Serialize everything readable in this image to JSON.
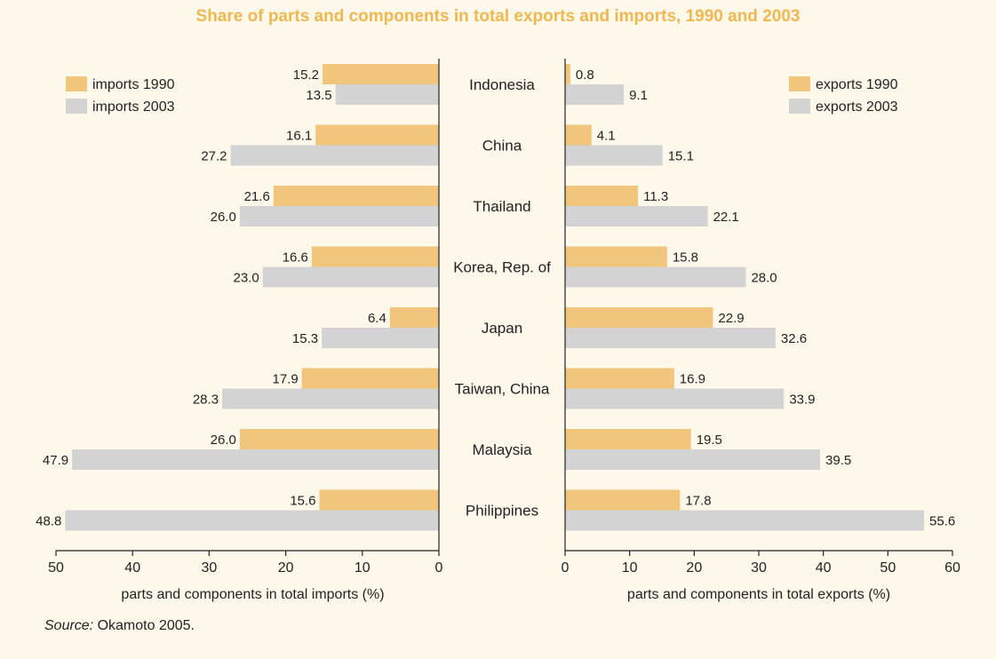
{
  "title": "Share of parts and components in total exports and imports, 1990 and 2003",
  "source": {
    "label": "Source:",
    "text": " Okamoto 2005."
  },
  "colors": {
    "y1990": "#f2c57c",
    "y2003": "#d3d3d3",
    "axis": "#222222",
    "title": "#efb750",
    "background": "#fdf8ea"
  },
  "chart_data": [
    {
      "type": "bar",
      "orientation": "horizontal",
      "direction": "reversed",
      "categories": [
        "Indonesia",
        "China",
        "Thailand",
        "Korea, Rep. of",
        "Japan",
        "Taiwan, China",
        "Malaysia",
        "Philippines"
      ],
      "series": [
        {
          "name": "imports 1990",
          "color": "#f2c57c",
          "values": [
            15.2,
            16.1,
            21.6,
            16.6,
            6.4,
            17.9,
            26.0,
            15.6
          ]
        },
        {
          "name": "imports 2003",
          "color": "#d3d3d3",
          "values": [
            13.5,
            27.2,
            26.0,
            23.0,
            15.3,
            28.3,
            47.9,
            48.8
          ]
        }
      ],
      "value_labels": {
        "imports 1990": [
          "15.2",
          "16.1",
          "21.6",
          "16.6",
          "6.4",
          "17.9",
          "26.0",
          "15.6"
        ],
        "imports 2003": [
          "13.5",
          "27.2",
          "26.0",
          "23.0",
          "15.3",
          "28.3",
          "47.9",
          "48.8"
        ]
      },
      "xlabel": "parts and components in total imports (%)",
      "xlim": [
        0,
        50
      ],
      "xticks": [
        50,
        40,
        30,
        20,
        10,
        0
      ],
      "legend": "top-left"
    },
    {
      "type": "bar",
      "orientation": "horizontal",
      "direction": "normal",
      "categories": [
        "Indonesia",
        "China",
        "Thailand",
        "Korea, Rep. of",
        "Japan",
        "Taiwan, China",
        "Malaysia",
        "Philippines"
      ],
      "series": [
        {
          "name": "exports 1990",
          "color": "#f2c57c",
          "values": [
            0.8,
            4.1,
            11.3,
            15.8,
            22.9,
            16.9,
            19.5,
            17.8
          ]
        },
        {
          "name": "exports 2003",
          "color": "#d3d3d3",
          "values": [
            9.1,
            15.1,
            22.1,
            28.0,
            32.6,
            33.9,
            39.5,
            55.6
          ]
        }
      ],
      "value_labels": {
        "exports 1990": [
          "0.8",
          "4.1",
          "11.3",
          "15.8",
          "22.9",
          "16.9",
          "19.5",
          "17.8"
        ],
        "exports 2003": [
          "9.1",
          "15.1",
          "22.1",
          "28.0",
          "32.6",
          "33.9",
          "39.5",
          "55.6"
        ]
      },
      "xlabel": "parts and components in total exports (%)",
      "xlim": [
        0,
        60
      ],
      "xticks": [
        0,
        10,
        20,
        30,
        40,
        50,
        60
      ],
      "legend": "top-right"
    }
  ]
}
